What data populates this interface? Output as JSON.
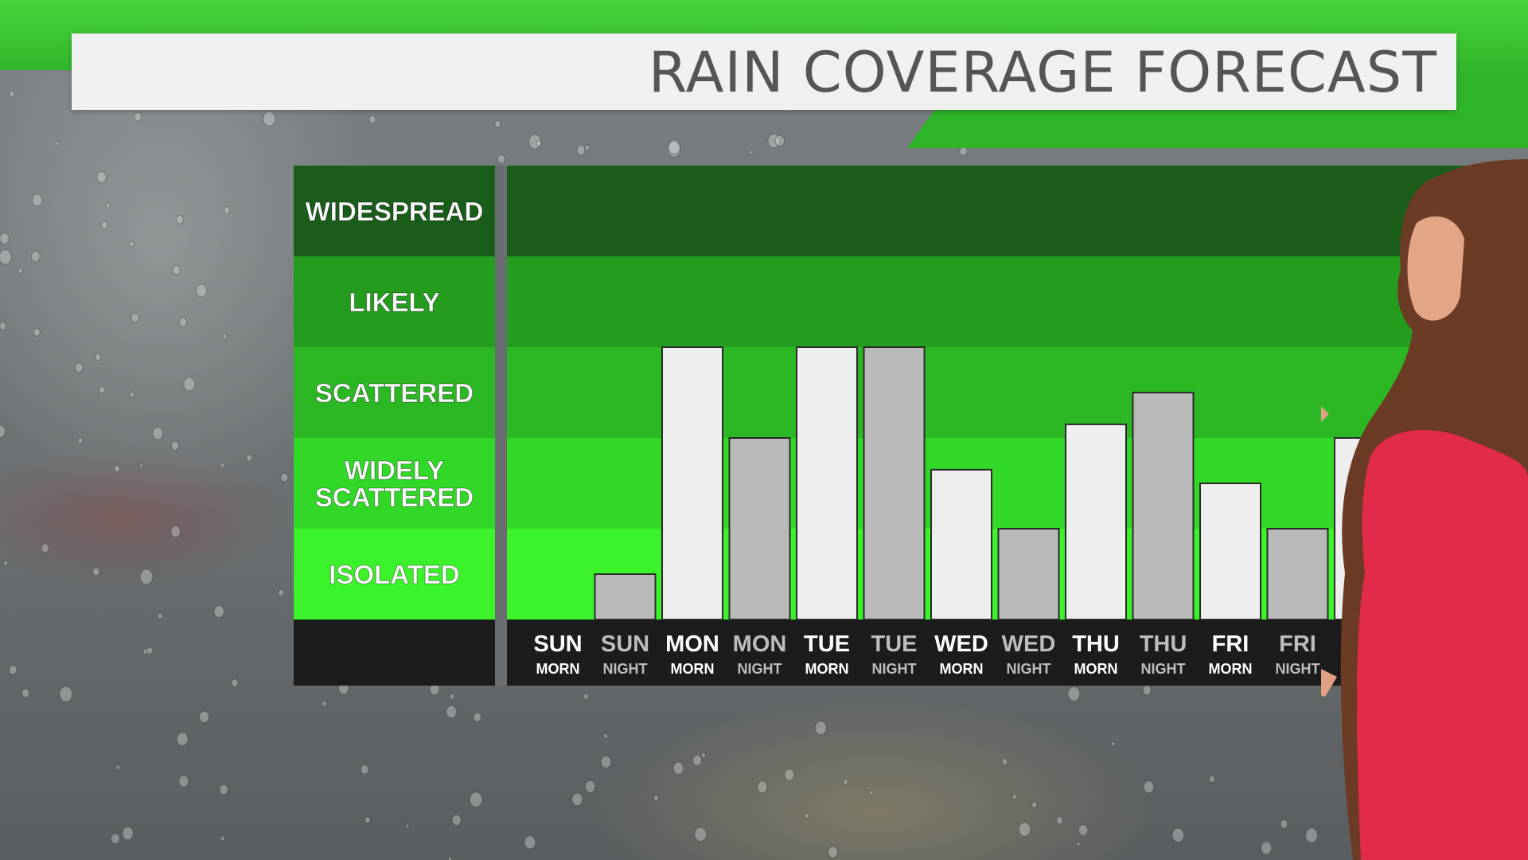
{
  "title": "RAIN COVERAGE FORECAST",
  "chart_data": {
    "type": "bar",
    "title": "RAIN COVERAGE FORECAST",
    "coverage_levels": [
      "ISOLATED",
      "WIDELY SCATTERED",
      "SCATTERED",
      "LIKELY",
      "WIDESPREAD"
    ],
    "ylim": [
      0,
      5
    ],
    "categories": [
      {
        "day": "SUN",
        "period": "MORN"
      },
      {
        "day": "SUN",
        "period": "NIGHT"
      },
      {
        "day": "MON",
        "period": "MORN"
      },
      {
        "day": "MON",
        "period": "NIGHT"
      },
      {
        "day": "TUE",
        "period": "MORN"
      },
      {
        "day": "TUE",
        "period": "NIGHT"
      },
      {
        "day": "WED",
        "period": "MORN"
      },
      {
        "day": "WED",
        "period": "NIGHT"
      },
      {
        "day": "THU",
        "period": "MORN"
      },
      {
        "day": "THU",
        "period": "NIGHT"
      },
      {
        "day": "FRI",
        "period": "MORN"
      },
      {
        "day": "FRI",
        "period": "NIGHT"
      },
      {
        "day": "",
        "period": ""
      }
    ],
    "values": [
      0,
      0.5,
      3.0,
      2.0,
      3.0,
      3.0,
      1.65,
      1.0,
      2.15,
      2.5,
      1.5,
      1.0,
      2.0
    ],
    "colors": {
      "morn_bar": "#eeeeee",
      "night_bar": "#b9b9b9",
      "level_bands": [
        "#3bf22b",
        "#32d827",
        "#2bb824",
        "#249c1e",
        "#1a5c1a"
      ],
      "axis_panel": "#1c1c1c"
    }
  }
}
